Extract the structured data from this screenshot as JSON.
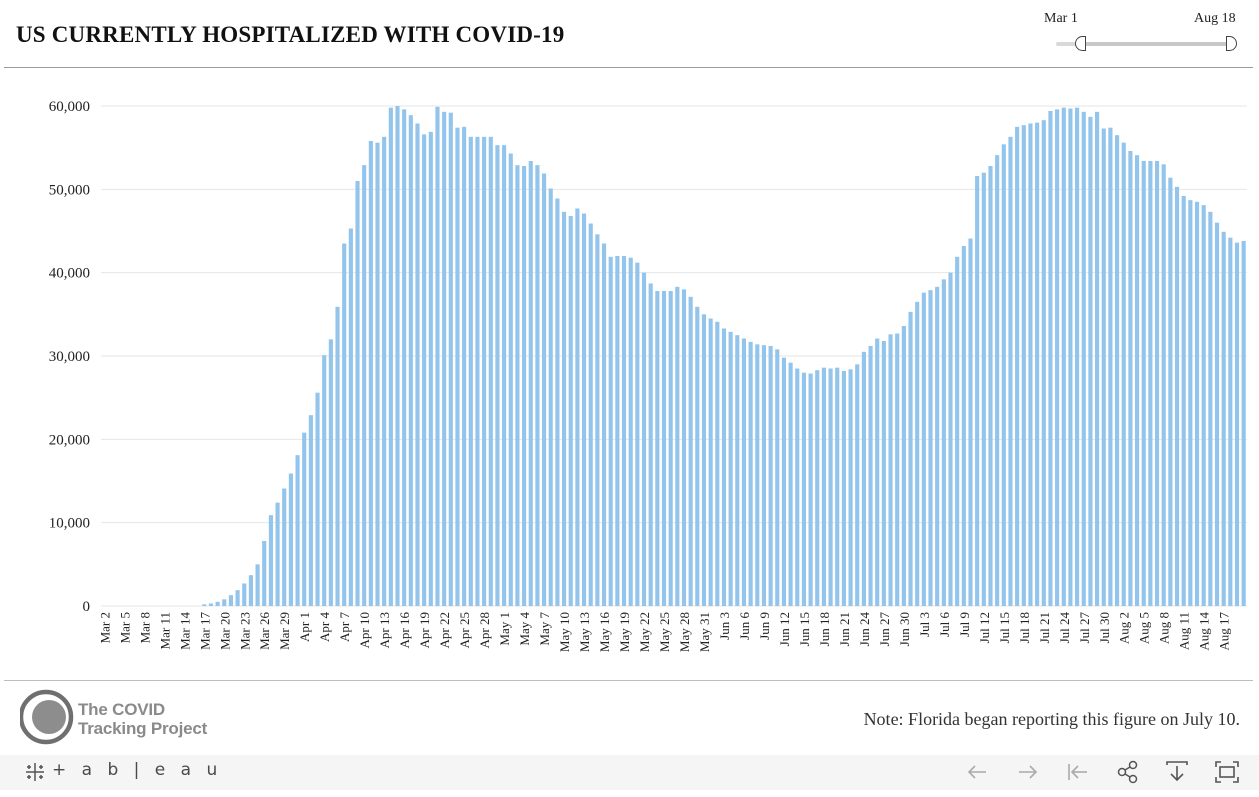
{
  "title": "US CURRENTLY HOSPITALIZED WITH COVID-19",
  "date_slider": {
    "start_label": "Mar 1",
    "end_label": "Aug 18"
  },
  "footer": {
    "logo_line1": "The COVID",
    "logo_line2": "Tracking Project",
    "note": "Note: Florida began reporting this figure on July 10."
  },
  "toolbar": {
    "brand": "+ a b | e a u",
    "buttons": [
      "undo-icon",
      "redo-icon",
      "revert-icon",
      "share-icon",
      "download-icon",
      "fullscreen-icon"
    ]
  },
  "colors": {
    "bar": "#92c4ec",
    "grid": "#e6e6e6",
    "text": "#222222"
  },
  "chart_data": {
    "type": "bar",
    "start_date": "Mar 2",
    "x_tick_labels": [
      "Mar 2",
      "Mar 5",
      "Mar 8",
      "Mar 11",
      "Mar 14",
      "Mar 17",
      "Mar 20",
      "Mar 23",
      "Mar 26",
      "Mar 29",
      "Apr 1",
      "Apr 4",
      "Apr 7",
      "Apr 10",
      "Apr 13",
      "Apr 16",
      "Apr 19",
      "Apr 22",
      "Apr 25",
      "Apr 28",
      "May 1",
      "May 4",
      "May 7",
      "May 10",
      "May 13",
      "May 16",
      "May 19",
      "May 22",
      "May 25",
      "May 28",
      "May 31",
      "Jun 3",
      "Jun 6",
      "Jun 9",
      "Jun 12",
      "Jun 15",
      "Jun 18",
      "Jun 21",
      "Jun 24",
      "Jun 27",
      "Jun 30",
      "Jul 3",
      "Jul 6",
      "Jul 9",
      "Jul 12",
      "Jul 15",
      "Jul 18",
      "Jul 21",
      "Jul 24",
      "Jul 27",
      "Jul 30",
      "Aug 2",
      "Aug 5",
      "Aug 8",
      "Aug 11",
      "Aug 14",
      "Aug 17"
    ],
    "y_tick_labels": [
      "0",
      "10,000",
      "20,000",
      "30,000",
      "40,000",
      "50,000",
      "60,000"
    ],
    "ylim": [
      0,
      60000
    ],
    "grid": true,
    "values": [
      0,
      0,
      0,
      0,
      0,
      0,
      0,
      0,
      0,
      0,
      0,
      0,
      0,
      0,
      0,
      200,
      300,
      500,
      800,
      1300,
      1900,
      2700,
      3700,
      5000,
      7800,
      10900,
      12400,
      14100,
      15900,
      18100,
      20800,
      22900,
      25600,
      30100,
      32000,
      35900,
      43500,
      45300,
      51000,
      52900,
      55800,
      55600,
      56300,
      59800,
      60000,
      59600,
      58900,
      57900,
      56600,
      56900,
      59900,
      59300,
      59200,
      57400,
      57500,
      56300,
      56300,
      56300,
      56300,
      55300,
      55300,
      54300,
      52900,
      52800,
      53400,
      52900,
      51900,
      50100,
      48900,
      47300,
      46800,
      47700,
      47100,
      45900,
      44600,
      43500,
      41900,
      42000,
      42000,
      41800,
      41200,
      40000,
      38700,
      37800,
      37800,
      37800,
      38300,
      38000,
      37100,
      35900,
      35000,
      34500,
      34100,
      33300,
      32900,
      32500,
      32100,
      31700,
      31400,
      31300,
      31200,
      30800,
      29800,
      29200,
      28500,
      28000,
      27900,
      28300,
      28600,
      28500,
      28600,
      28200,
      28400,
      29000,
      30500,
      31200,
      32100,
      31800,
      32600,
      32700,
      33600,
      35300,
      36500,
      37600,
      37900,
      38300,
      39200,
      40000,
      41900,
      43200,
      44100,
      51600,
      52000,
      52800,
      54100,
      55400,
      56300,
      57500,
      57700,
      57900,
      58000,
      58300,
      59400,
      59600,
      59800,
      59700,
      59800,
      59300,
      58700,
      59300,
      57300,
      57400,
      56500,
      55600,
      54600,
      54100,
      53400,
      53400,
      53400,
      53000,
      51400,
      50300,
      49200,
      48700,
      48500,
      48100,
      47300,
      46000,
      44900,
      44200,
      43600,
      43800
    ]
  }
}
